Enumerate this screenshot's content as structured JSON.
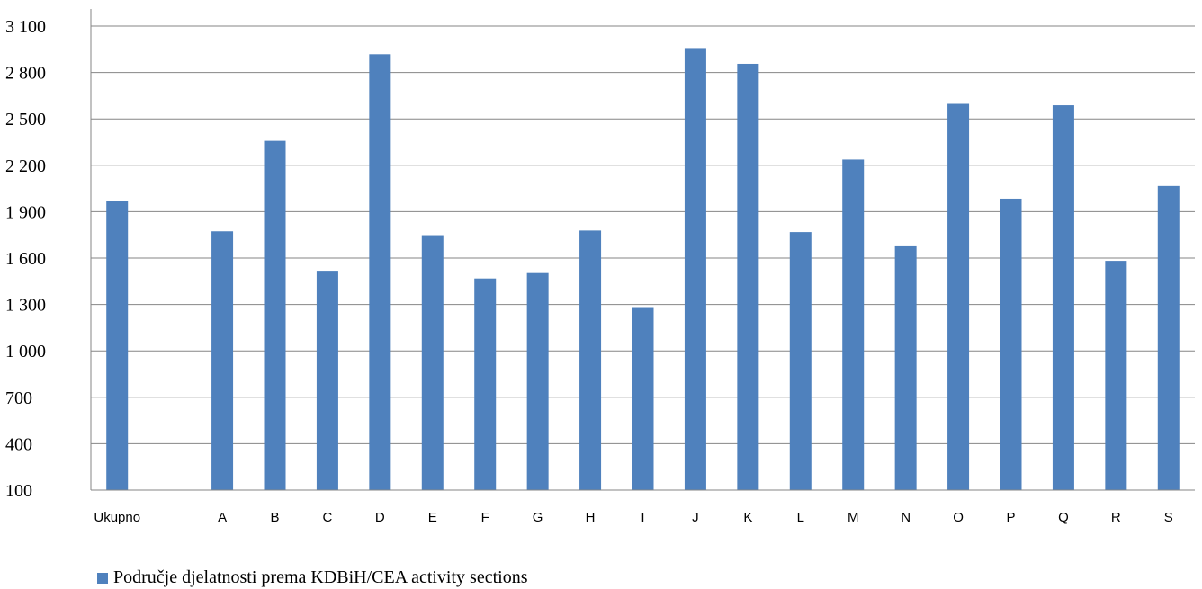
{
  "chart_data": {
    "type": "bar",
    "categories": [
      "Ukupno",
      "",
      "A",
      "B",
      "C",
      "D",
      "E",
      "F",
      "G",
      "H",
      "I",
      "J",
      "K",
      "L",
      "M",
      "N",
      "O",
      "P",
      "Q",
      "R",
      "S"
    ],
    "series": [
      {
        "name": "Područje djelatnosti prema KDBiH/CEA activity sections",
        "values": [
          1972,
          null,
          1773,
          2358,
          1518,
          2918,
          1748,
          1468,
          1503,
          1778,
          1283,
          2958,
          2856,
          1768,
          2237,
          1676,
          2597,
          1984,
          2588,
          1582,
          2066
        ],
        "color": "#4f81bd"
      }
    ],
    "ylim": [
      100,
      3100
    ],
    "yticks": [
      100,
      400,
      700,
      1000,
      1300,
      1600,
      1900,
      2200,
      2500,
      2800,
      3100
    ],
    "ytick_labels": [
      "100",
      "400",
      "700",
      "1 000",
      "1 300",
      "1 600",
      "1 900",
      "2 200",
      "2 500",
      "2 800",
      "3 100"
    ],
    "grid": true,
    "legend": "bottom-left",
    "title": "",
    "xlabel": "",
    "ylabel": ""
  }
}
